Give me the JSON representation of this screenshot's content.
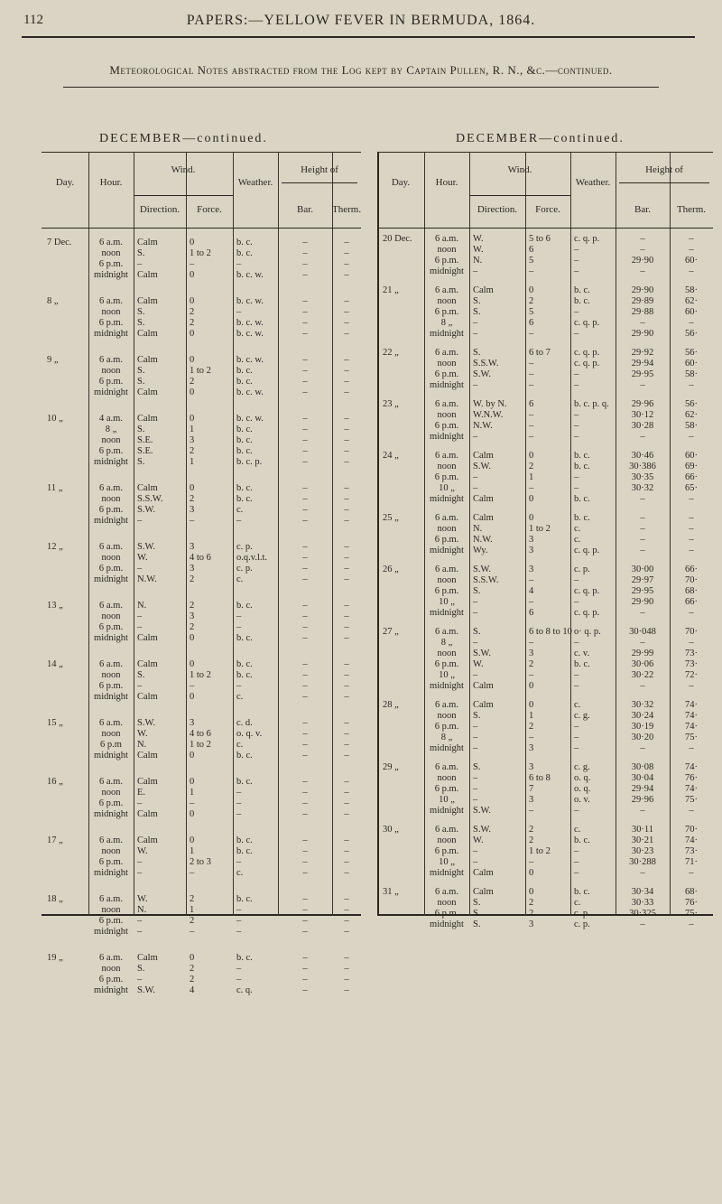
{
  "header": {
    "page_number": "112",
    "running_title": "PAPERS:—YELLOW FEVER IN BERMUDA, 1864.",
    "subtitle": "Meteorological Notes abstracted from the Log kept by Captain Pullen, R. N., &c.—continued."
  },
  "colors": {
    "paper": "#d9d4c3",
    "ink": "#2b2720"
  },
  "columns": {
    "day": "Day.",
    "hour": "Hour.",
    "wind": "Wind.",
    "direction": "Direction.",
    "force": "Force.",
    "weather": "Weather.",
    "height_of": "Height of",
    "bar": "Bar.",
    "therm": "Therm."
  },
  "tables": [
    {
      "title": "DECEMBER—continued.",
      "days": [
        {
          "day": "7 Dec.",
          "rows": [
            [
              "6 a.m.",
              "Calm",
              "0",
              "b. c.",
              "–",
              "–"
            ],
            [
              "noon",
              "S.",
              "1 to 2",
              "b. c.",
              "–",
              "–"
            ],
            [
              "6 p.m.",
              "–",
              "–",
              "–",
              "–",
              "–"
            ],
            [
              "midnight",
              "Calm",
              "0",
              "b. c. w.",
              "–",
              "–"
            ]
          ]
        },
        {
          "day": "8 „",
          "rows": [
            [
              "6 a.m.",
              "Calm",
              "0",
              "b. c. w.",
              "–",
              "–"
            ],
            [
              "noon",
              "S.",
              "2",
              "–",
              "–",
              "–"
            ],
            [
              "6 p.m.",
              "S.",
              "2",
              "b. c. w.",
              "–",
              "–"
            ],
            [
              "midnight",
              "Calm",
              "0",
              "b. c. w.",
              "–",
              "–"
            ]
          ]
        },
        {
          "day": "9 „",
          "rows": [
            [
              "6 a.m.",
              "Calm",
              "0",
              "b. c. w.",
              "–",
              "–"
            ],
            [
              "noon",
              "S.",
              "1 to 2",
              "b. c.",
              "–",
              "–"
            ],
            [
              "6 p.m.",
              "S.",
              "2",
              "b. c.",
              "–",
              "–"
            ],
            [
              "midnight",
              "Calm",
              "0",
              "b. c. w.",
              "–",
              "–"
            ]
          ]
        },
        {
          "day": "10 „",
          "rows": [
            [
              "4 a.m.",
              "Calm",
              "0",
              "b. c. w.",
              "–",
              "–"
            ],
            [
              "8 „",
              "S.",
              "1",
              "b. c.",
              "–",
              "–"
            ],
            [
              "noon",
              "S.E.",
              "3",
              "b. c.",
              "–",
              "–"
            ],
            [
              "6 p.m.",
              "S.E.",
              "2",
              "b. c.",
              "–",
              "–"
            ],
            [
              "midnight",
              "S.",
              "1",
              "b. c. p.",
              "–",
              "–"
            ]
          ]
        },
        {
          "day": "11 „",
          "rows": [
            [
              "6 a.m.",
              "Calm",
              "0",
              "b. c.",
              "–",
              "–"
            ],
            [
              "noon",
              "S.S.W.",
              "2",
              "b. c.",
              "–",
              "–"
            ],
            [
              "6 p.m.",
              "S.W.",
              "3",
              "c.",
              "–",
              "–"
            ],
            [
              "midnight",
              "–",
              "–",
              "–",
              "–",
              "–"
            ]
          ]
        },
        {
          "day": "12 „",
          "rows": [
            [
              "6 a.m.",
              "S.W.",
              "3",
              "c. p.",
              "–",
              "–"
            ],
            [
              "noon",
              "W.",
              "4 to 6",
              "o.q.v.l.t.",
              "–",
              "–"
            ],
            [
              "6 p.m.",
              "–",
              "3",
              "c. p.",
              "–",
              "–"
            ],
            [
              "midnight",
              "N.W.",
              "2",
              "c.",
              "–",
              "–"
            ]
          ]
        },
        {
          "day": "13 „",
          "rows": [
            [
              "6 a.m.",
              "N.",
              "2",
              "b. c.",
              "–",
              "–"
            ],
            [
              "noon",
              "–",
              "3",
              "–",
              "–",
              "–"
            ],
            [
              "6 p.m.",
              "–",
              "2",
              "–",
              "–",
              "–"
            ],
            [
              "midnight",
              "Calm",
              "0",
              "b. c.",
              "–",
              "–"
            ]
          ]
        },
        {
          "day": "14 „",
          "rows": [
            [
              "6 a.m.",
              "Calm",
              "0",
              "b. c.",
              "–",
              "–"
            ],
            [
              "noon",
              "S.",
              "1 to 2",
              "b. c.",
              "–",
              "–"
            ],
            [
              "6 p.m.",
              "–",
              "–",
              "–",
              "–",
              "–"
            ],
            [
              "midnight",
              "Calm",
              "0",
              "c.",
              "–",
              "–"
            ]
          ]
        },
        {
          "day": "15 „",
          "rows": [
            [
              "6 a.m.",
              "S.W.",
              "3",
              "c. d.",
              "–",
              "–"
            ],
            [
              "noon",
              "W.",
              "4 to 6",
              "o. q. v.",
              "–",
              "–"
            ],
            [
              "6 p.m",
              "N.",
              "1 to 2",
              "c.",
              "–",
              "–"
            ],
            [
              "midnight",
              "Calm",
              "0",
              "b. c.",
              "–",
              "–"
            ]
          ]
        },
        {
          "day": "16 „",
          "rows": [
            [
              "6 a.m.",
              "Calm",
              "0",
              "b. c.",
              "–",
              "–"
            ],
            [
              "noon",
              "E.",
              "1",
              "–",
              "–",
              "–"
            ],
            [
              "6 p.m.",
              "–",
              "–",
              "–",
              "–",
              "–"
            ],
            [
              "midnight",
              "Calm",
              "0",
              "–",
              "–",
              "–"
            ]
          ]
        },
        {
          "day": "17 „",
          "rows": [
            [
              "6 a.m.",
              "Calm",
              "0",
              "b. c.",
              "–",
              "–"
            ],
            [
              "noon",
              "W.",
              "1",
              "b. c.",
              "–",
              "–"
            ],
            [
              "6 p.m.",
              "–",
              "2 to 3",
              "–",
              "–",
              "–"
            ],
            [
              "midnight",
              "–",
              "–",
              "c.",
              "–",
              "–"
            ]
          ]
        },
        {
          "day": "18 „",
          "rows": [
            [
              "6 a.m.",
              "W.",
              "2",
              "b. c.",
              "–",
              "–"
            ],
            [
              "noon",
              "N.",
              "1",
              "–",
              "–",
              "–"
            ],
            [
              "6 p.m.",
              "–",
              "2",
              "–",
              "–",
              "–"
            ],
            [
              "midnight",
              "–",
              "–",
              "–",
              "–",
              "–"
            ]
          ]
        },
        {
          "day": "19 „",
          "rows": [
            [
              "6 a.m.",
              "Calm",
              "0",
              "b. c.",
              "–",
              "–"
            ],
            [
              "noon",
              "S.",
              "2",
              "–",
              "–",
              "–"
            ],
            [
              "6 p.m.",
              "–",
              "2",
              "–",
              "–",
              "–"
            ],
            [
              "midnight",
              "S.W.",
              "4",
              "c. q.",
              "–",
              "–"
            ]
          ]
        }
      ]
    },
    {
      "title": "DECEMBER—continued.",
      "days": [
        {
          "day": "20 Dec.",
          "rows": [
            [
              "6 a.m.",
              "W.",
              "5 to 6",
              "c. q. p.",
              "–",
              "–"
            ],
            [
              "noon",
              "W.",
              "6",
              "–",
              "–",
              "–"
            ],
            [
              "6 p.m.",
              "N.",
              "5",
              "–",
              "29·90",
              "60·"
            ],
            [
              "midnight",
              "–",
              "–",
              "–",
              "–",
              "–"
            ]
          ]
        },
        {
          "day": "21 „",
          "rows": [
            [
              "6 a.m.",
              "Calm",
              "0",
              "b. c.",
              "29·90",
              "58·"
            ],
            [
              "noon",
              "S.",
              "2",
              "b. c.",
              "29·89",
              "62·"
            ],
            [
              "6 p.m.",
              "S.",
              "5",
              "–",
              "29·88",
              "60·"
            ],
            [
              "8 „",
              "–",
              "6",
              "c. q. p.",
              "–",
              "–"
            ],
            [
              "midnight",
              "–",
              "–",
              "–",
              "29·90",
              "56·"
            ]
          ]
        },
        {
          "day": "22 „",
          "rows": [
            [
              "6 a.m.",
              "S.",
              "6 to 7",
              "c. q. p.",
              "29·92",
              "56·"
            ],
            [
              "noon",
              "S.S.W.",
              "–",
              "c. q. p.",
              "29·94",
              "60·"
            ],
            [
              "6 p.m.",
              "S.W.",
              "–",
              "–",
              "29·95",
              "58·"
            ],
            [
              "midnight",
              "–",
              "–",
              "–",
              "–",
              "–"
            ]
          ]
        },
        {
          "day": "23 „",
          "rows": [
            [
              "6 a.m.",
              "W. by N.",
              "6",
              "b. c. p. q.",
              "29·96",
              "56·"
            ],
            [
              "noon",
              "W.N.W.",
              "–",
              "–",
              "30·12",
              "62·"
            ],
            [
              "6 p.m.",
              "N.W.",
              "–",
              "–",
              "30·28",
              "58·"
            ],
            [
              "midnight",
              "–",
              "–",
              "–",
              "–",
              "–"
            ]
          ]
        },
        {
          "day": "24 „",
          "rows": [
            [
              "6 a.m.",
              "Calm",
              "0",
              "b. c.",
              "30·46",
              "60·"
            ],
            [
              "noon",
              "S.W.",
              "2",
              "b. c.",
              "30·386",
              "69·"
            ],
            [
              "6 p.m.",
              "–",
              "1",
              "–",
              "30·35",
              "66·"
            ],
            [
              "10 „",
              "–",
              "–",
              "–",
              "30·32",
              "65·"
            ],
            [
              "midnight",
              "Calm",
              "0",
              "b. c.",
              "–",
              "–"
            ]
          ]
        },
        {
          "day": "25 „",
          "rows": [
            [
              "6 a.m.",
              "Calm",
              "0",
              "b. c.",
              "–",
              "–"
            ],
            [
              "noon",
              "N.",
              "1 to 2",
              "c.",
              "–",
              "–"
            ],
            [
              "6 p.m.",
              "N.W.",
              "3",
              "c.",
              "–",
              "–"
            ],
            [
              "midnight",
              "Wy.",
              "3",
              "c. q. p.",
              "–",
              "–"
            ]
          ]
        },
        {
          "day": "26 „",
          "rows": [
            [
              "6 a.m.",
              "S.W.",
              "3",
              "c. p.",
              "30·00",
              "66·"
            ],
            [
              "noon",
              "S.S.W.",
              "–",
              "–",
              "29·97",
              "70·"
            ],
            [
              "6 p.m.",
              "S.",
              "4",
              "c. q. p.",
              "29·95",
              "68·"
            ],
            [
              "10 „",
              "–",
              "–",
              "–",
              "29·90",
              "66·"
            ],
            [
              "midnight",
              "–",
              "6",
              "c. q. p.",
              "–",
              "–"
            ]
          ]
        },
        {
          "day": "27 „",
          "rows": [
            [
              "6 a.m.",
              "S.",
              "6 to 8 to 10",
              "o· q. p.",
              "30·048",
              "70·"
            ],
            [
              "8 „",
              "–",
              "–",
              "–",
              "–",
              "–"
            ],
            [
              "noon",
              "S.W.",
              "3",
              "c. v.",
              "29·99",
              "73·"
            ],
            [
              "6 p.m.",
              "W.",
              "2",
              "b. c.",
              "30·06",
              "73·"
            ],
            [
              "10 „",
              "–",
              "–",
              "–",
              "30·22",
              "72·"
            ],
            [
              "midnight",
              "Calm",
              "0",
              "–",
              "–",
              "–"
            ]
          ]
        },
        {
          "day": "28 „",
          "rows": [
            [
              "6 a.m.",
              "Calm",
              "0",
              "c.",
              "30·32",
              "74·"
            ],
            [
              "noon",
              "S.",
              "1",
              "c. g.",
              "30·24",
              "74·"
            ],
            [
              "6 p.m.",
              "–",
              "2",
              "–",
              "30·19",
              "74·"
            ],
            [
              "8 „",
              "–",
              "–",
              "–",
              "30·20",
              "75·"
            ],
            [
              "midnight",
              "–",
              "3",
              "–",
              "–",
              "–"
            ]
          ]
        },
        {
          "day": "29 „",
          "rows": [
            [
              "6 a.m.",
              "S.",
              "3",
              "c. g.",
              "30·08",
              "74·"
            ],
            [
              "noon",
              "–",
              "6 to 8",
              "o. q.",
              "30·04",
              "76·"
            ],
            [
              "6 p.m.",
              "–",
              "7",
              "o. q.",
              "29·94",
              "74·"
            ],
            [
              "10 „",
              "–",
              "3",
              "o. v.",
              "29·96",
              "75·"
            ],
            [
              "midnight",
              "S.W.",
              "–",
              "–",
              "–",
              "–"
            ]
          ]
        },
        {
          "day": "30 „",
          "rows": [
            [
              "6 a.m.",
              "S.W.",
              "2",
              "c.",
              "30·11",
              "70·"
            ],
            [
              "noon",
              "W.",
              "2",
              "b. c.",
              "30·21",
              "74·"
            ],
            [
              "6 p.m.",
              "–",
              "1 to 2",
              "–",
              "30·23",
              "73·"
            ],
            [
              "10 „",
              "–",
              "–",
              "–",
              "30·288",
              "71·"
            ],
            [
              "midnight",
              "Calm",
              "0",
              "–",
              "–",
              "–"
            ]
          ]
        },
        {
          "day": "31 „",
          "rows": [
            [
              "6 a.m.",
              "Calm",
              "0",
              "b. c.",
              "30·34",
              "68·"
            ],
            [
              "noon",
              "S.",
              "2",
              "c.",
              "30·33",
              "76·"
            ],
            [
              "6 p.m.",
              "S.",
              "2",
              "c. p.",
              "30·325",
              "75·"
            ],
            [
              "midnight",
              "S.",
              "3",
              "c. p.",
              "–",
              "–"
            ]
          ]
        }
      ]
    }
  ]
}
